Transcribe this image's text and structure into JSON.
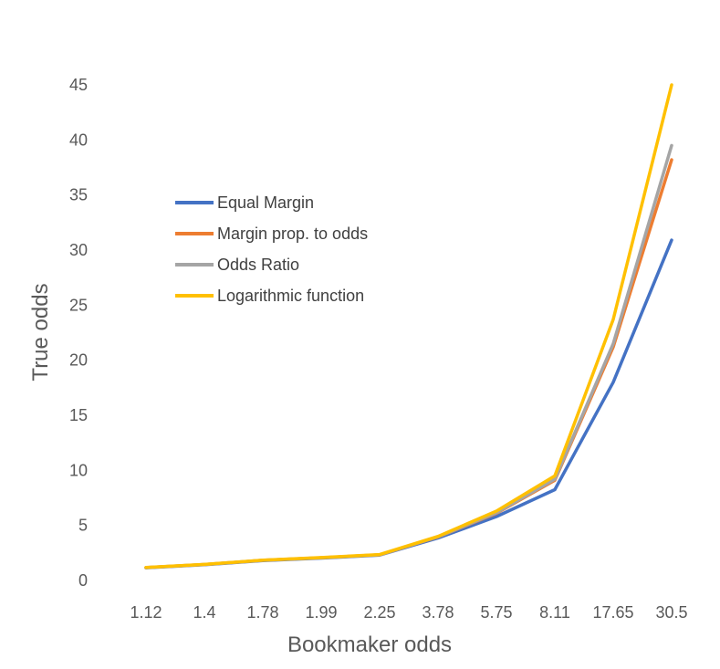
{
  "chart_data": {
    "type": "line",
    "title": "",
    "xlabel": "Bookmaker odds",
    "ylabel": "True odds",
    "categories": [
      "1.12",
      "1.4",
      "1.78",
      "1.99",
      "2.25",
      "3.78",
      "5.75",
      "8.11",
      "17.65",
      "30.5"
    ],
    "ylim": [
      0,
      45
    ],
    "yticks": [
      0,
      5,
      10,
      15,
      20,
      25,
      30,
      35,
      40,
      45
    ],
    "grid": false,
    "legend_position": "upper-left-inside",
    "series": [
      {
        "name": "Equal Margin",
        "color": "#4472C4",
        "values": [
          1.15,
          1.43,
          1.8,
          2.03,
          2.3,
          3.85,
          5.8,
          8.25,
          18.0,
          30.9
        ]
      },
      {
        "name": "Margin prop. to odds",
        "color": "#ED7D31",
        "values": [
          1.17,
          1.45,
          1.83,
          2.06,
          2.33,
          3.95,
          6.1,
          9.1,
          21.2,
          38.2
        ]
      },
      {
        "name": "Odds Ratio",
        "color": "#A5A5A5",
        "values": [
          1.17,
          1.45,
          1.83,
          2.06,
          2.33,
          3.97,
          6.15,
          9.2,
          21.5,
          39.5
        ]
      },
      {
        "name": "Logarithmic function",
        "color": "#FFC000",
        "values": [
          1.18,
          1.46,
          1.85,
          2.08,
          2.35,
          4.0,
          6.3,
          9.5,
          23.7,
          45.0
        ]
      }
    ]
  }
}
